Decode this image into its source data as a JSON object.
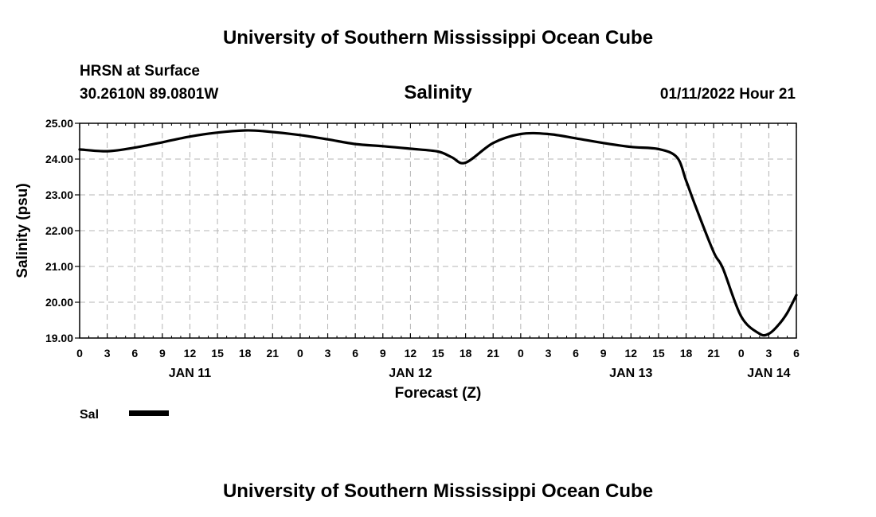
{
  "header": {
    "title": "University of Southern Mississippi Ocean Cube",
    "station": "HRSN at Surface",
    "coords": "30.2610N  89.0801W",
    "chart_title": "Salinity",
    "timestamp": "01/11/2022 Hour 21"
  },
  "footer": {
    "title": "University of Southern Mississippi Ocean Cube"
  },
  "colors": {
    "line": "#000000",
    "grid": "#b4b4b4",
    "background": "#ffffff"
  },
  "chart_data": {
    "type": "line",
    "title": "Salinity",
    "xlabel": "Forecast (Z)",
    "ylabel": "Salinity (psu)",
    "ylim": [
      19.0,
      25.0
    ],
    "yticks": [
      "19.00",
      "20.00",
      "21.00",
      "22.00",
      "23.00",
      "24.00",
      "25.00"
    ],
    "xlim_hours": [
      0,
      78
    ],
    "xtick_labels": [
      "0",
      "3",
      "6",
      "9",
      "12",
      "15",
      "18",
      "21",
      "0",
      "3",
      "6",
      "9",
      "12",
      "15",
      "18",
      "21",
      "0",
      "3",
      "6",
      "9",
      "12",
      "15",
      "18",
      "21",
      "0",
      "3",
      "6"
    ],
    "day_labels": [
      {
        "label": "JAN 11",
        "hour": 12
      },
      {
        "label": "JAN 12",
        "hour": 36
      },
      {
        "label": "JAN 13",
        "hour": 60
      },
      {
        "label": "JAN 14",
        "hour": 75
      }
    ],
    "grid": true,
    "legend": "bottom-left",
    "series": [
      {
        "name": "Sal",
        "x_hours": [
          0,
          3,
          6,
          9,
          12,
          15,
          18,
          20,
          24,
          27,
          30,
          33,
          36,
          39,
          40.5,
          42,
          45,
          48,
          51,
          54,
          57,
          60,
          63,
          65,
          66,
          67,
          69,
          70,
          72,
          74,
          75,
          76,
          77,
          78
        ],
        "values": [
          24.27,
          24.22,
          24.32,
          24.47,
          24.63,
          24.74,
          24.8,
          24.78,
          24.67,
          24.55,
          24.42,
          24.36,
          24.29,
          24.21,
          24.05,
          23.9,
          24.45,
          24.7,
          24.7,
          24.58,
          24.45,
          24.34,
          24.28,
          24.05,
          23.4,
          22.7,
          21.4,
          20.95,
          19.6,
          19.12,
          19.12,
          19.35,
          19.7,
          20.2
        ]
      }
    ]
  }
}
